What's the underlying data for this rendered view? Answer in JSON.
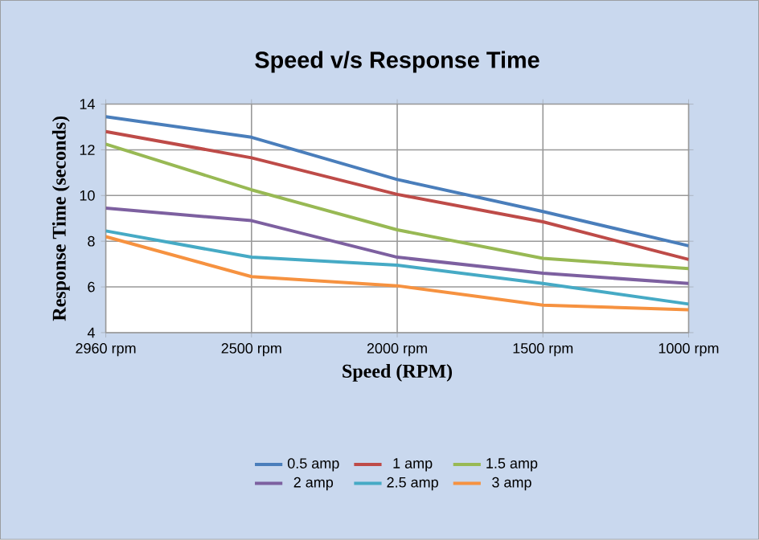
{
  "chart_data": {
    "type": "line",
    "title": "Speed v/s Response Time",
    "xlabel": "Speed (RPM)",
    "ylabel": "Response Time (seconds)",
    "categories": [
      "2960 rpm",
      "2500 rpm",
      "2000 rpm",
      "1500 rpm",
      "1000 rpm"
    ],
    "ylim": [
      4,
      14
    ],
    "yticks": [
      4,
      6,
      8,
      10,
      12,
      14
    ],
    "grid": true,
    "legend": "bottom",
    "marker": "none",
    "series": [
      {
        "name": "0.5 amp",
        "color": "#4a7ebb",
        "values": [
          13.45,
          12.55,
          10.7,
          9.3,
          7.8
        ]
      },
      {
        "name": "1 amp",
        "color": "#be4b48",
        "values": [
          12.8,
          11.65,
          10.05,
          8.85,
          7.2
        ]
      },
      {
        "name": "1.5 amp",
        "color": "#98b954",
        "values": [
          12.25,
          10.25,
          8.5,
          7.25,
          6.8
        ]
      },
      {
        "name": "2 amp",
        "color": "#7d60a0",
        "values": [
          9.45,
          8.9,
          7.3,
          6.6,
          6.15
        ]
      },
      {
        "name": "2.5 amp",
        "color": "#46aac5",
        "values": [
          8.45,
          7.3,
          6.95,
          6.15,
          5.25
        ]
      },
      {
        "name": "3 amp",
        "color": "#f69240",
        "values": [
          8.2,
          6.45,
          6.05,
          5.2,
          5.0
        ]
      }
    ]
  }
}
